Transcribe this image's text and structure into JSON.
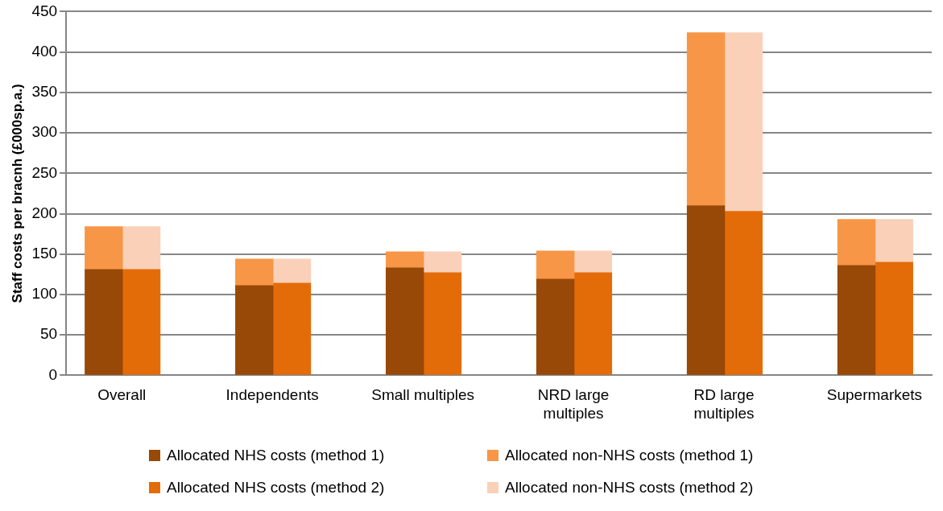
{
  "chart_data": {
    "type": "bar",
    "stacked": true,
    "ylabel": "Staff costs per bracnh (£000sp.a.)",
    "categories": [
      null,
      "Overall",
      null,
      null,
      null,
      "Independents",
      null,
      null,
      null,
      "Small multiples",
      null,
      null,
      null,
      "NRD large multiples",
      null,
      null,
      null,
      "RD large multiples",
      null,
      null,
      null,
      "Supermarkets",
      null,
      null
    ],
    "series": [
      {
        "name": "Allocated NHS costs (method 1)",
        "color": "#984807",
        "values": [
          null,
          131,
          null,
          null,
          null,
          111,
          null,
          null,
          null,
          133,
          null,
          null,
          null,
          119,
          null,
          null,
          null,
          210,
          null,
          null,
          null,
          136,
          null,
          null
        ]
      },
      {
        "name": "Allocated non-NHS costs (method 1)",
        "color": "#f79646",
        "values": [
          null,
          53,
          null,
          null,
          null,
          33,
          null,
          null,
          null,
          20,
          null,
          null,
          null,
          35,
          null,
          null,
          null,
          214,
          null,
          null,
          null,
          57,
          null,
          null
        ]
      },
      {
        "name": "Allocated NHS costs (method 2)",
        "color": "#e36c09",
        "values": [
          null,
          null,
          131,
          null,
          null,
          null,
          114,
          null,
          null,
          null,
          127,
          null,
          null,
          null,
          127,
          null,
          null,
          null,
          203,
          null,
          null,
          null,
          140,
          null
        ]
      },
      {
        "name": "Allocated non-NHS costs (method 2)",
        "color": "#fad0b8",
        "values": [
          null,
          null,
          53,
          null,
          null,
          null,
          30,
          null,
          null,
          null,
          26,
          null,
          null,
          null,
          27,
          null,
          null,
          null,
          221,
          null,
          null,
          null,
          53,
          null
        ]
      }
    ],
    "ylim": [
      0,
      450
    ],
    "yticks": [
      0,
      50,
      100,
      150,
      200,
      250,
      300,
      350,
      400,
      450
    ],
    "grid": "y",
    "legend": "bottom"
  }
}
